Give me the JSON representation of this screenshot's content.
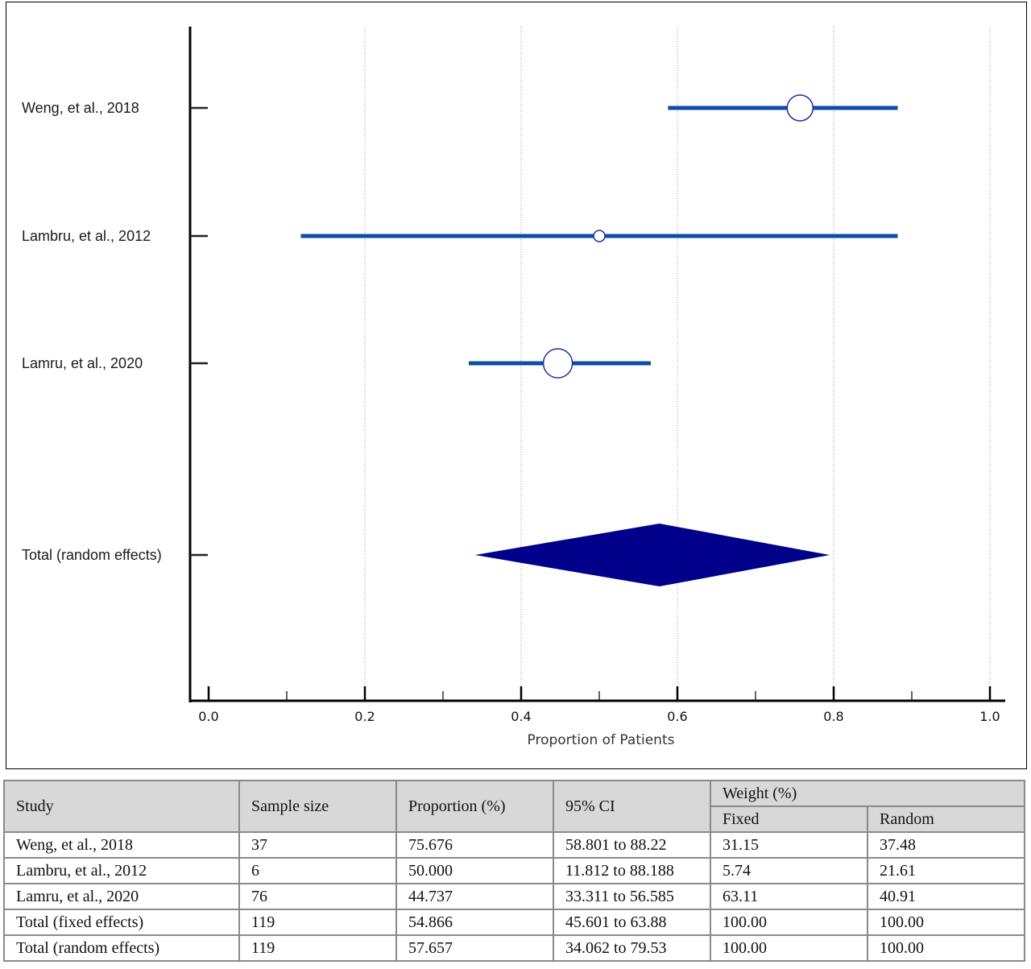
{
  "chart_data": {
    "type": "forest",
    "xlabel": "Proportion of Patients",
    "xlim": [
      0.0,
      1.0
    ],
    "xticks": [
      "0.0",
      "0.2",
      "0.4",
      "0.6",
      "0.8",
      "1.0"
    ],
    "grid": true,
    "studies": [
      {
        "label": "Weng, et al., 2018",
        "estimate": 0.757,
        "lower": 0.588,
        "upper": 0.882,
        "weight": 37.48
      },
      {
        "label": "Lambru, et al., 2012",
        "estimate": 0.5,
        "lower": 0.118,
        "upper": 0.882,
        "weight": 21.61
      },
      {
        "label": "Lamru, et al., 2020",
        "estimate": 0.447,
        "lower": 0.333,
        "upper": 0.566,
        "weight": 40.91
      }
    ],
    "summary": {
      "label": "Total (random effects)",
      "estimate": 0.577,
      "lower": 0.341,
      "upper": 0.795
    },
    "colors": {
      "ci_line": "#0a4fa3",
      "marker_stroke": "#1f2e9e",
      "diamond": "#00008b"
    }
  },
  "table": {
    "headers": {
      "study": "Study",
      "sample_size": "Sample size",
      "proportion": "Proportion (%)",
      "ci": "95% CI",
      "weight": "Weight (%)",
      "fixed": "Fixed",
      "random": "Random"
    },
    "rows": [
      [
        "Weng, et al., 2018",
        "37",
        "75.676",
        "58.801 to 88.22",
        "31.15",
        "37.48"
      ],
      [
        "Lambru, et al., 2012",
        "6",
        "50.000",
        "11.812 to 88.188",
        "5.74",
        "21.61"
      ],
      [
        "Lamru, et al., 2020",
        "76",
        "44.737",
        "33.311 to 56.585",
        "63.11",
        "40.91"
      ],
      [
        "Total (fixed effects)",
        "119",
        "54.866",
        "45.601 to 63.88",
        "100.00",
        "100.00"
      ],
      [
        "Total (random effects)",
        "119",
        "57.657",
        "34.062 to 79.53",
        "100.00",
        "100.00"
      ]
    ]
  }
}
